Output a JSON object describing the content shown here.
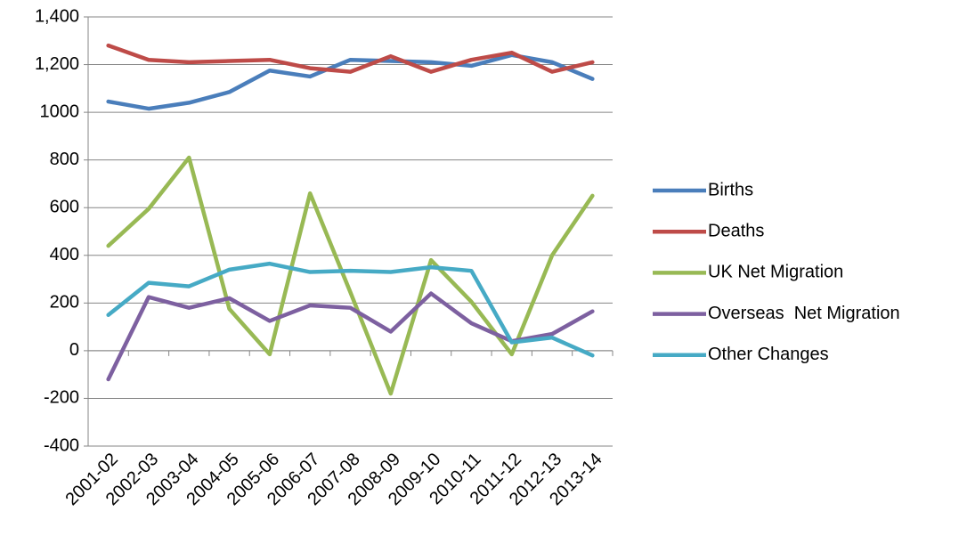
{
  "chart_data": {
    "type": "line",
    "categories": [
      "2001-02",
      "2002-03",
      "2003-04",
      "2004-05",
      "2005-06",
      "2006-07",
      "2007-08",
      "2008-09",
      "2009-10",
      "2010-11",
      "2011-12",
      "2012-13",
      "2013-14"
    ],
    "series": [
      {
        "name": "Births",
        "color": "#4a7ebb",
        "values": [
          1045,
          1015,
          1040,
          1085,
          1175,
          1150,
          1220,
          1215,
          1210,
          1195,
          1240,
          1210,
          1140
        ]
      },
      {
        "name": "Deaths",
        "color": "#be4b48",
        "values": [
          1280,
          1220,
          1210,
          1215,
          1220,
          1185,
          1170,
          1235,
          1170,
          1220,
          1250,
          1170,
          1210
        ]
      },
      {
        "name": "UK Net Migration",
        "color": "#98b954",
        "values": [
          440,
          595,
          810,
          175,
          -15,
          660,
          245,
          -180,
          380,
          205,
          -15,
          400,
          650
        ]
      },
      {
        "name": "Overseas  Net Migration",
        "color": "#7d60a0",
        "values": [
          -120,
          225,
          180,
          220,
          125,
          190,
          180,
          80,
          240,
          115,
          40,
          70,
          165
        ]
      },
      {
        "name": "Other Changes",
        "color": "#46aac5",
        "values": [
          150,
          285,
          270,
          340,
          365,
          330,
          335,
          330,
          350,
          335,
          35,
          55,
          -20
        ]
      }
    ],
    "ylim": [
      -400,
      1400
    ],
    "yticks": [
      -400,
      -200,
      0,
      200,
      400,
      600,
      800,
      1000,
      {
        "value": 1200,
        "label": "1,200"
      },
      {
        "value": 1400,
        "label": "1,400"
      }
    ],
    "grid": true,
    "legend": "right"
  }
}
